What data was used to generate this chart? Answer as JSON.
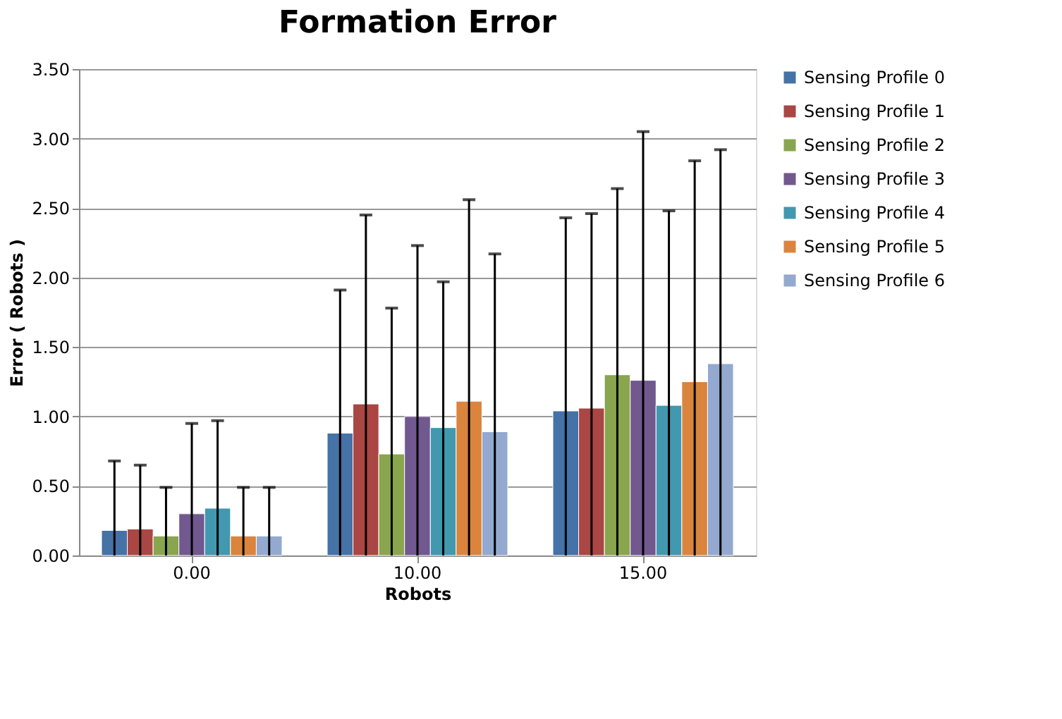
{
  "chart_data": {
    "type": "bar",
    "title": "Formation Error",
    "xlabel": "Robots",
    "ylabel": "Error ( Robots )",
    "categories": [
      "0.00",
      "10.00",
      "15.00"
    ],
    "series": [
      {
        "name": "Sensing Profile 0",
        "color": "#4572a7",
        "values": [
          0.18,
          0.88,
          1.04
        ],
        "errors": [
          [
            0,
            0.68
          ],
          [
            0,
            1.91
          ],
          [
            0,
            2.43
          ]
        ]
      },
      {
        "name": "Sensing Profile 1",
        "color": "#aa4643",
        "values": [
          0.19,
          1.09,
          1.06
        ],
        "errors": [
          [
            0,
            0.65
          ],
          [
            0,
            2.45
          ],
          [
            0,
            2.46
          ]
        ]
      },
      {
        "name": "Sensing Profile 2",
        "color": "#89a54e",
        "values": [
          0.14,
          0.73,
          1.3
        ],
        "errors": [
          [
            0,
            0.49
          ],
          [
            0,
            1.78
          ],
          [
            0,
            2.64
          ]
        ]
      },
      {
        "name": "Sensing Profile 3",
        "color": "#71588f",
        "values": [
          0.3,
          1.0,
          1.26
        ],
        "errors": [
          [
            0,
            0.95
          ],
          [
            0,
            2.23
          ],
          [
            0,
            3.05
          ]
        ]
      },
      {
        "name": "Sensing Profile 4",
        "color": "#4198af",
        "values": [
          0.34,
          0.92,
          1.08
        ],
        "errors": [
          [
            0,
            0.97
          ],
          [
            0,
            1.97
          ],
          [
            0,
            2.48
          ]
        ]
      },
      {
        "name": "Sensing Profile 5",
        "color": "#db843d",
        "values": [
          0.14,
          1.11,
          1.25
        ],
        "errors": [
          [
            0,
            0.49
          ],
          [
            0,
            2.56
          ],
          [
            0,
            2.84
          ]
        ]
      },
      {
        "name": "Sensing Profile 6",
        "color": "#93a9cf",
        "values": [
          0.14,
          0.89,
          1.38
        ],
        "errors": [
          [
            0,
            0.49
          ],
          [
            0,
            2.17
          ],
          [
            0,
            2.92
          ]
        ]
      }
    ],
    "ylim": [
      0,
      3.5
    ],
    "yticks": [
      {
        "value": 0,
        "label": "0.00"
      },
      {
        "value": 0.5,
        "label": "0.50"
      },
      {
        "value": 1,
        "label": "1.00"
      },
      {
        "value": 1.5,
        "label": "1.50"
      },
      {
        "value": 2,
        "label": "2.00"
      },
      {
        "value": 2.5,
        "label": "2.50"
      },
      {
        "value": 3,
        "label": "3.00"
      },
      {
        "value": 3.5,
        "label": "3.50"
      }
    ],
    "grid": "y",
    "legend": "right"
  }
}
